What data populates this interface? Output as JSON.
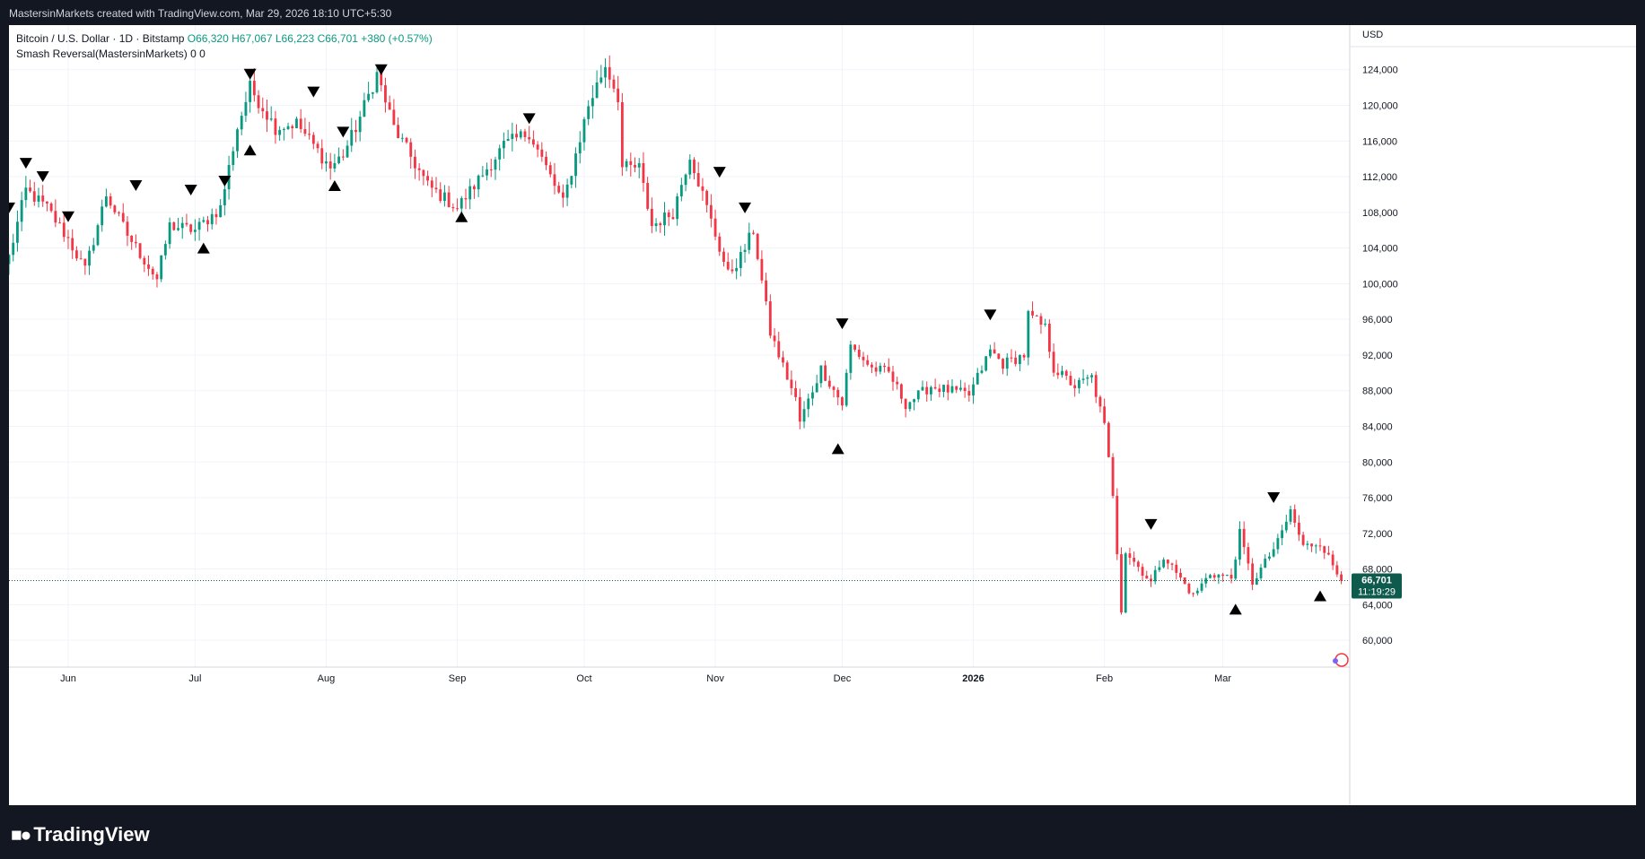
{
  "header": {
    "caption": "MastersinMarkets created with TradingView.com, Mar 29, 2026 18:10 UTC+5:30"
  },
  "legend": {
    "symbol": "Bitcoin / U.S. Dollar · 1D · Bitstamp",
    "open": "O66,320",
    "high": "H67,067",
    "low": "L66,223",
    "close": "C66,701",
    "change": "+380 (+0.57%)",
    "indicator": "Smash Reversal(MastersinMarkets)",
    "indicator_values": "0 0"
  },
  "price_axis": {
    "currency": "USD",
    "last_price": "66,701",
    "countdown": "11:19:29"
  },
  "footer": {
    "brand": "TradingView"
  },
  "colors": {
    "up": "#089981",
    "down": "#f23645",
    "badge": "#0e5b4d",
    "grid": "#f0f3fa"
  },
  "chart_data": {
    "type": "candlestick",
    "series": [
      {
        "name": "Bitcoin / U.S. Dollar"
      }
    ],
    "ylim": [
      57000,
      129000
    ],
    "yticks": [
      60000,
      64000,
      68000,
      72000,
      76000,
      80000,
      84000,
      88000,
      92000,
      96000,
      100000,
      104000,
      108000,
      112000,
      116000,
      120000,
      124000
    ],
    "ytick_labels": [
      "60,000",
      "64,000",
      "68,000",
      "72,000",
      "76,000",
      "80,000",
      "84,000",
      "88,000",
      "92,000",
      "96,000",
      "100,000",
      "104,000",
      "108,000",
      "112,000",
      "116,000",
      "120,000",
      "124,000"
    ],
    "x_range": [
      "2025-05-18",
      "2026-03-31"
    ],
    "xticks": [
      {
        "date": "2025-06-01",
        "label": "Jun"
      },
      {
        "date": "2025-07-01",
        "label": "Jul"
      },
      {
        "date": "2025-08-01",
        "label": "Aug"
      },
      {
        "date": "2025-09-01",
        "label": "Sep"
      },
      {
        "date": "2025-10-01",
        "label": "Oct"
      },
      {
        "date": "2025-11-01",
        "label": "Nov"
      },
      {
        "date": "2025-12-01",
        "label": "Dec"
      },
      {
        "date": "2026-01-01",
        "label": "2026"
      },
      {
        "date": "2026-02-01",
        "label": "Feb"
      },
      {
        "date": "2026-03-01",
        "label": "Mar"
      }
    ],
    "last_price": 66701,
    "close_anchors": [
      [
        "2025-05-18",
        103000
      ],
      [
        "2025-05-22",
        110500
      ],
      [
        "2025-05-27",
        108500
      ],
      [
        "2025-06-01",
        105000
      ],
      [
        "2025-06-05",
        101500
      ],
      [
        "2025-06-10",
        110000
      ],
      [
        "2025-06-15",
        105500
      ],
      [
        "2025-06-22",
        100500
      ],
      [
        "2025-06-25",
        106500
      ],
      [
        "2025-07-01",
        106000
      ],
      [
        "2025-07-07",
        108500
      ],
      [
        "2025-07-11",
        117500
      ],
      [
        "2025-07-14",
        122000
      ],
      [
        "2025-07-20",
        117500
      ],
      [
        "2025-07-25",
        118000
      ],
      [
        "2025-08-02",
        113000
      ],
      [
        "2025-08-05",
        114500
      ],
      [
        "2025-08-08",
        117500
      ],
      [
        "2025-08-13",
        123500
      ],
      [
        "2025-08-17",
        117500
      ],
      [
        "2025-08-25",
        111000
      ],
      [
        "2025-09-01",
        108500
      ],
      [
        "2025-09-05",
        111000
      ],
      [
        "2025-09-12",
        115500
      ],
      [
        "2025-09-18",
        117000
      ],
      [
        "2025-09-22",
        113000
      ],
      [
        "2025-09-26",
        109000
      ],
      [
        "2025-10-02",
        120000
      ],
      [
        "2025-10-06",
        124500
      ],
      [
        "2025-10-09",
        121000
      ],
      [
        "2025-10-10",
        113000
      ],
      [
        "2025-10-14",
        113000
      ],
      [
        "2025-10-17",
        106500
      ],
      [
        "2025-10-22",
        108000
      ],
      [
        "2025-10-26",
        114500
      ],
      [
        "2025-10-30",
        108500
      ],
      [
        "2025-11-04",
        101000
      ],
      [
        "2025-11-07",
        103000
      ],
      [
        "2025-11-10",
        106000
      ],
      [
        "2025-11-14",
        94500
      ],
      [
        "2025-11-20",
        87000
      ],
      [
        "2025-11-21",
        84500
      ],
      [
        "2025-11-26",
        90500
      ],
      [
        "2025-12-01",
        86500
      ],
      [
        "2025-12-03",
        93000
      ],
      [
        "2025-12-08",
        90500
      ],
      [
        "2025-12-12",
        90000
      ],
      [
        "2025-12-16",
        86500
      ],
      [
        "2025-12-22",
        88500
      ],
      [
        "2025-12-31",
        87500
      ],
      [
        "2026-01-05",
        92500
      ],
      [
        "2026-01-08",
        91000
      ],
      [
        "2026-01-13",
        92000
      ],
      [
        "2026-01-14",
        96500
      ],
      [
        "2026-01-18",
        95000
      ],
      [
        "2026-01-20",
        90500
      ],
      [
        "2026-01-25",
        88500
      ],
      [
        "2026-01-29",
        89500
      ],
      [
        "2026-02-01",
        84000
      ],
      [
        "2026-02-03",
        76500
      ],
      [
        "2026-02-05",
        63500
      ],
      [
        "2026-02-06",
        70000
      ],
      [
        "2026-02-12",
        66500
      ],
      [
        "2026-02-15",
        69500
      ],
      [
        "2026-02-22",
        65000
      ],
      [
        "2026-02-26",
        67500
      ],
      [
        "2026-03-03",
        67000
      ],
      [
        "2026-03-05",
        72000
      ],
      [
        "2026-03-08",
        66500
      ],
      [
        "2026-03-14",
        71000
      ],
      [
        "2026-03-17",
        74500
      ],
      [
        "2026-03-20",
        70500
      ],
      [
        "2026-03-24",
        71000
      ],
      [
        "2026-03-29",
        66701
      ]
    ],
    "signals": [
      {
        "date": "2025-05-18",
        "dir": "down",
        "price": 108500
      },
      {
        "date": "2025-05-22",
        "dir": "down",
        "price": 113500
      },
      {
        "date": "2025-05-26",
        "dir": "down",
        "price": 112000
      },
      {
        "date": "2025-06-01",
        "dir": "down",
        "price": 107500
      },
      {
        "date": "2025-06-17",
        "dir": "down",
        "price": 111000
      },
      {
        "date": "2025-06-30",
        "dir": "down",
        "price": 110500
      },
      {
        "date": "2025-07-03",
        "dir": "up",
        "price": 104000
      },
      {
        "date": "2025-07-08",
        "dir": "down",
        "price": 111500
      },
      {
        "date": "2025-07-14",
        "dir": "down",
        "price": 123500
      },
      {
        "date": "2025-07-14",
        "dir": "up",
        "price": 115000
      },
      {
        "date": "2025-07-29",
        "dir": "down",
        "price": 121500
      },
      {
        "date": "2025-08-03",
        "dir": "up",
        "price": 111000
      },
      {
        "date": "2025-08-05",
        "dir": "down",
        "price": 117000
      },
      {
        "date": "2025-08-14",
        "dir": "down",
        "price": 124000
      },
      {
        "date": "2025-09-02",
        "dir": "up",
        "price": 107500
      },
      {
        "date": "2025-09-18",
        "dir": "down",
        "price": 118500
      },
      {
        "date": "2025-11-02",
        "dir": "down",
        "price": 112500
      },
      {
        "date": "2025-11-08",
        "dir": "down",
        "price": 108500
      },
      {
        "date": "2025-11-30",
        "dir": "up",
        "price": 81500
      },
      {
        "date": "2025-12-01",
        "dir": "down",
        "price": 95500
      },
      {
        "date": "2026-01-05",
        "dir": "down",
        "price": 96500
      },
      {
        "date": "2026-02-12",
        "dir": "down",
        "price": 73000
      },
      {
        "date": "2026-03-04",
        "dir": "up",
        "price": 63500
      },
      {
        "date": "2026-03-13",
        "dir": "down",
        "price": 76000
      },
      {
        "date": "2026-03-24",
        "dir": "up",
        "price": 65000
      }
    ]
  }
}
